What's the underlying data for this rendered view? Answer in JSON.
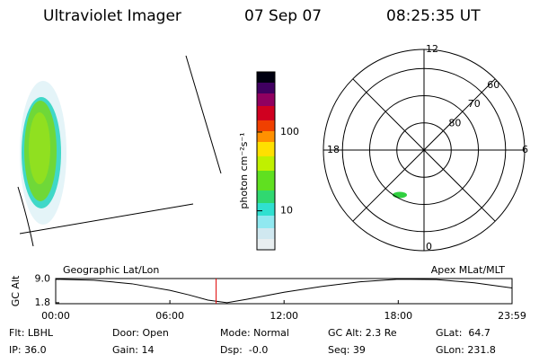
{
  "header": {
    "title": "Ultraviolet Imager",
    "date": "07 Sep 07",
    "time": "08:25:35 UT"
  },
  "colorbar": {
    "label": "photon cm⁻²s⁻¹",
    "log": true,
    "zlim": [
      3.2,
      580
    ],
    "ticks": [
      10,
      100
    ]
  },
  "polar": {
    "rlim": [
      90,
      53
    ],
    "ring_ticks": [
      80,
      70,
      60
    ],
    "mlt_ticks": [
      12,
      6,
      0,
      18
    ]
  },
  "chart_data": {
    "type": "line",
    "ylabel": "GC Alt",
    "left_label": "Geographic Lat/Lon",
    "right_label": "Apex MLat/MLT",
    "x": [
      0,
      2,
      4,
      6,
      7,
      8,
      9,
      10,
      12,
      14,
      16,
      18,
      20,
      22,
      23.98
    ],
    "values": [
      9.0,
      8.7,
      7.6,
      5.6,
      4.2,
      2.6,
      1.8,
      2.8,
      5.0,
      6.8,
      8.2,
      9.0,
      8.9,
      7.9,
      6.3
    ],
    "color": "#000000",
    "xlim": [
      0,
      23.98
    ],
    "xticks": [
      {
        "value": 0,
        "label": "00:00"
      },
      {
        "value": 6,
        "label": "06:00"
      },
      {
        "value": 12,
        "label": "12:00"
      },
      {
        "value": 18,
        "label": "18:00"
      },
      {
        "value": 23.98,
        "label": "23:59"
      }
    ],
    "ylim": [
      1.5,
      9.2
    ],
    "yticks": [
      {
        "value": 9.0,
        "label": "9.0"
      },
      {
        "value": 1.8,
        "label": "1.8"
      }
    ],
    "marker_x": 8.43,
    "marker_color": "#e00000"
  },
  "footer": [
    [
      "Flt: LBHL",
      "IP: 36.0"
    ],
    [
      "Door: Open",
      "Gain: 14"
    ],
    [
      "Mode: Normal",
      "Dsp:  -0.0"
    ],
    [
      "GC Alt: 2.3 Re",
      "Seq: 39"
    ],
    [
      "GLat:  64.7",
      "GLon: 231.8"
    ]
  ]
}
